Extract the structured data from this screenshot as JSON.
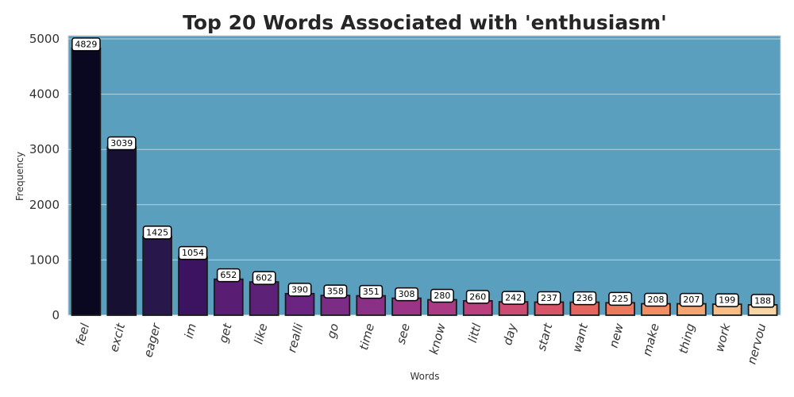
{
  "chart_data": {
    "type": "bar",
    "title": "Top 20 Words Associated with 'enthusiasm'",
    "xlabel": "Words",
    "ylabel": "Frequency",
    "ylim": [
      0,
      5000
    ],
    "yticks": [
      0,
      1000,
      2000,
      3000,
      4000,
      5000
    ],
    "grid": true,
    "background_color": "#5b9fbf",
    "categories": [
      "feel",
      "excit",
      "eager",
      "im",
      "get",
      "like",
      "realli",
      "go",
      "time",
      "see",
      "know",
      "littl",
      "day",
      "start",
      "want",
      "new",
      "make",
      "thing",
      "work",
      "nervou"
    ],
    "values": [
      4829,
      3039,
      1425,
      1054,
      652,
      602,
      390,
      358,
      351,
      308,
      280,
      260,
      242,
      237,
      236,
      225,
      208,
      207,
      199,
      188
    ],
    "colors": [
      "#0a0820",
      "#181033",
      "#27174a",
      "#3c1361",
      "#591e74",
      "#5d2278",
      "#6b2482",
      "#7b2c84",
      "#8b3087",
      "#9a3487",
      "#aa3a83",
      "#bb3f7d",
      "#cb4b72",
      "#d85468",
      "#e4665f",
      "#ec795d",
      "#f28e62",
      "#f5a56f",
      "#f7bd84",
      "#f9d5a3"
    ]
  }
}
